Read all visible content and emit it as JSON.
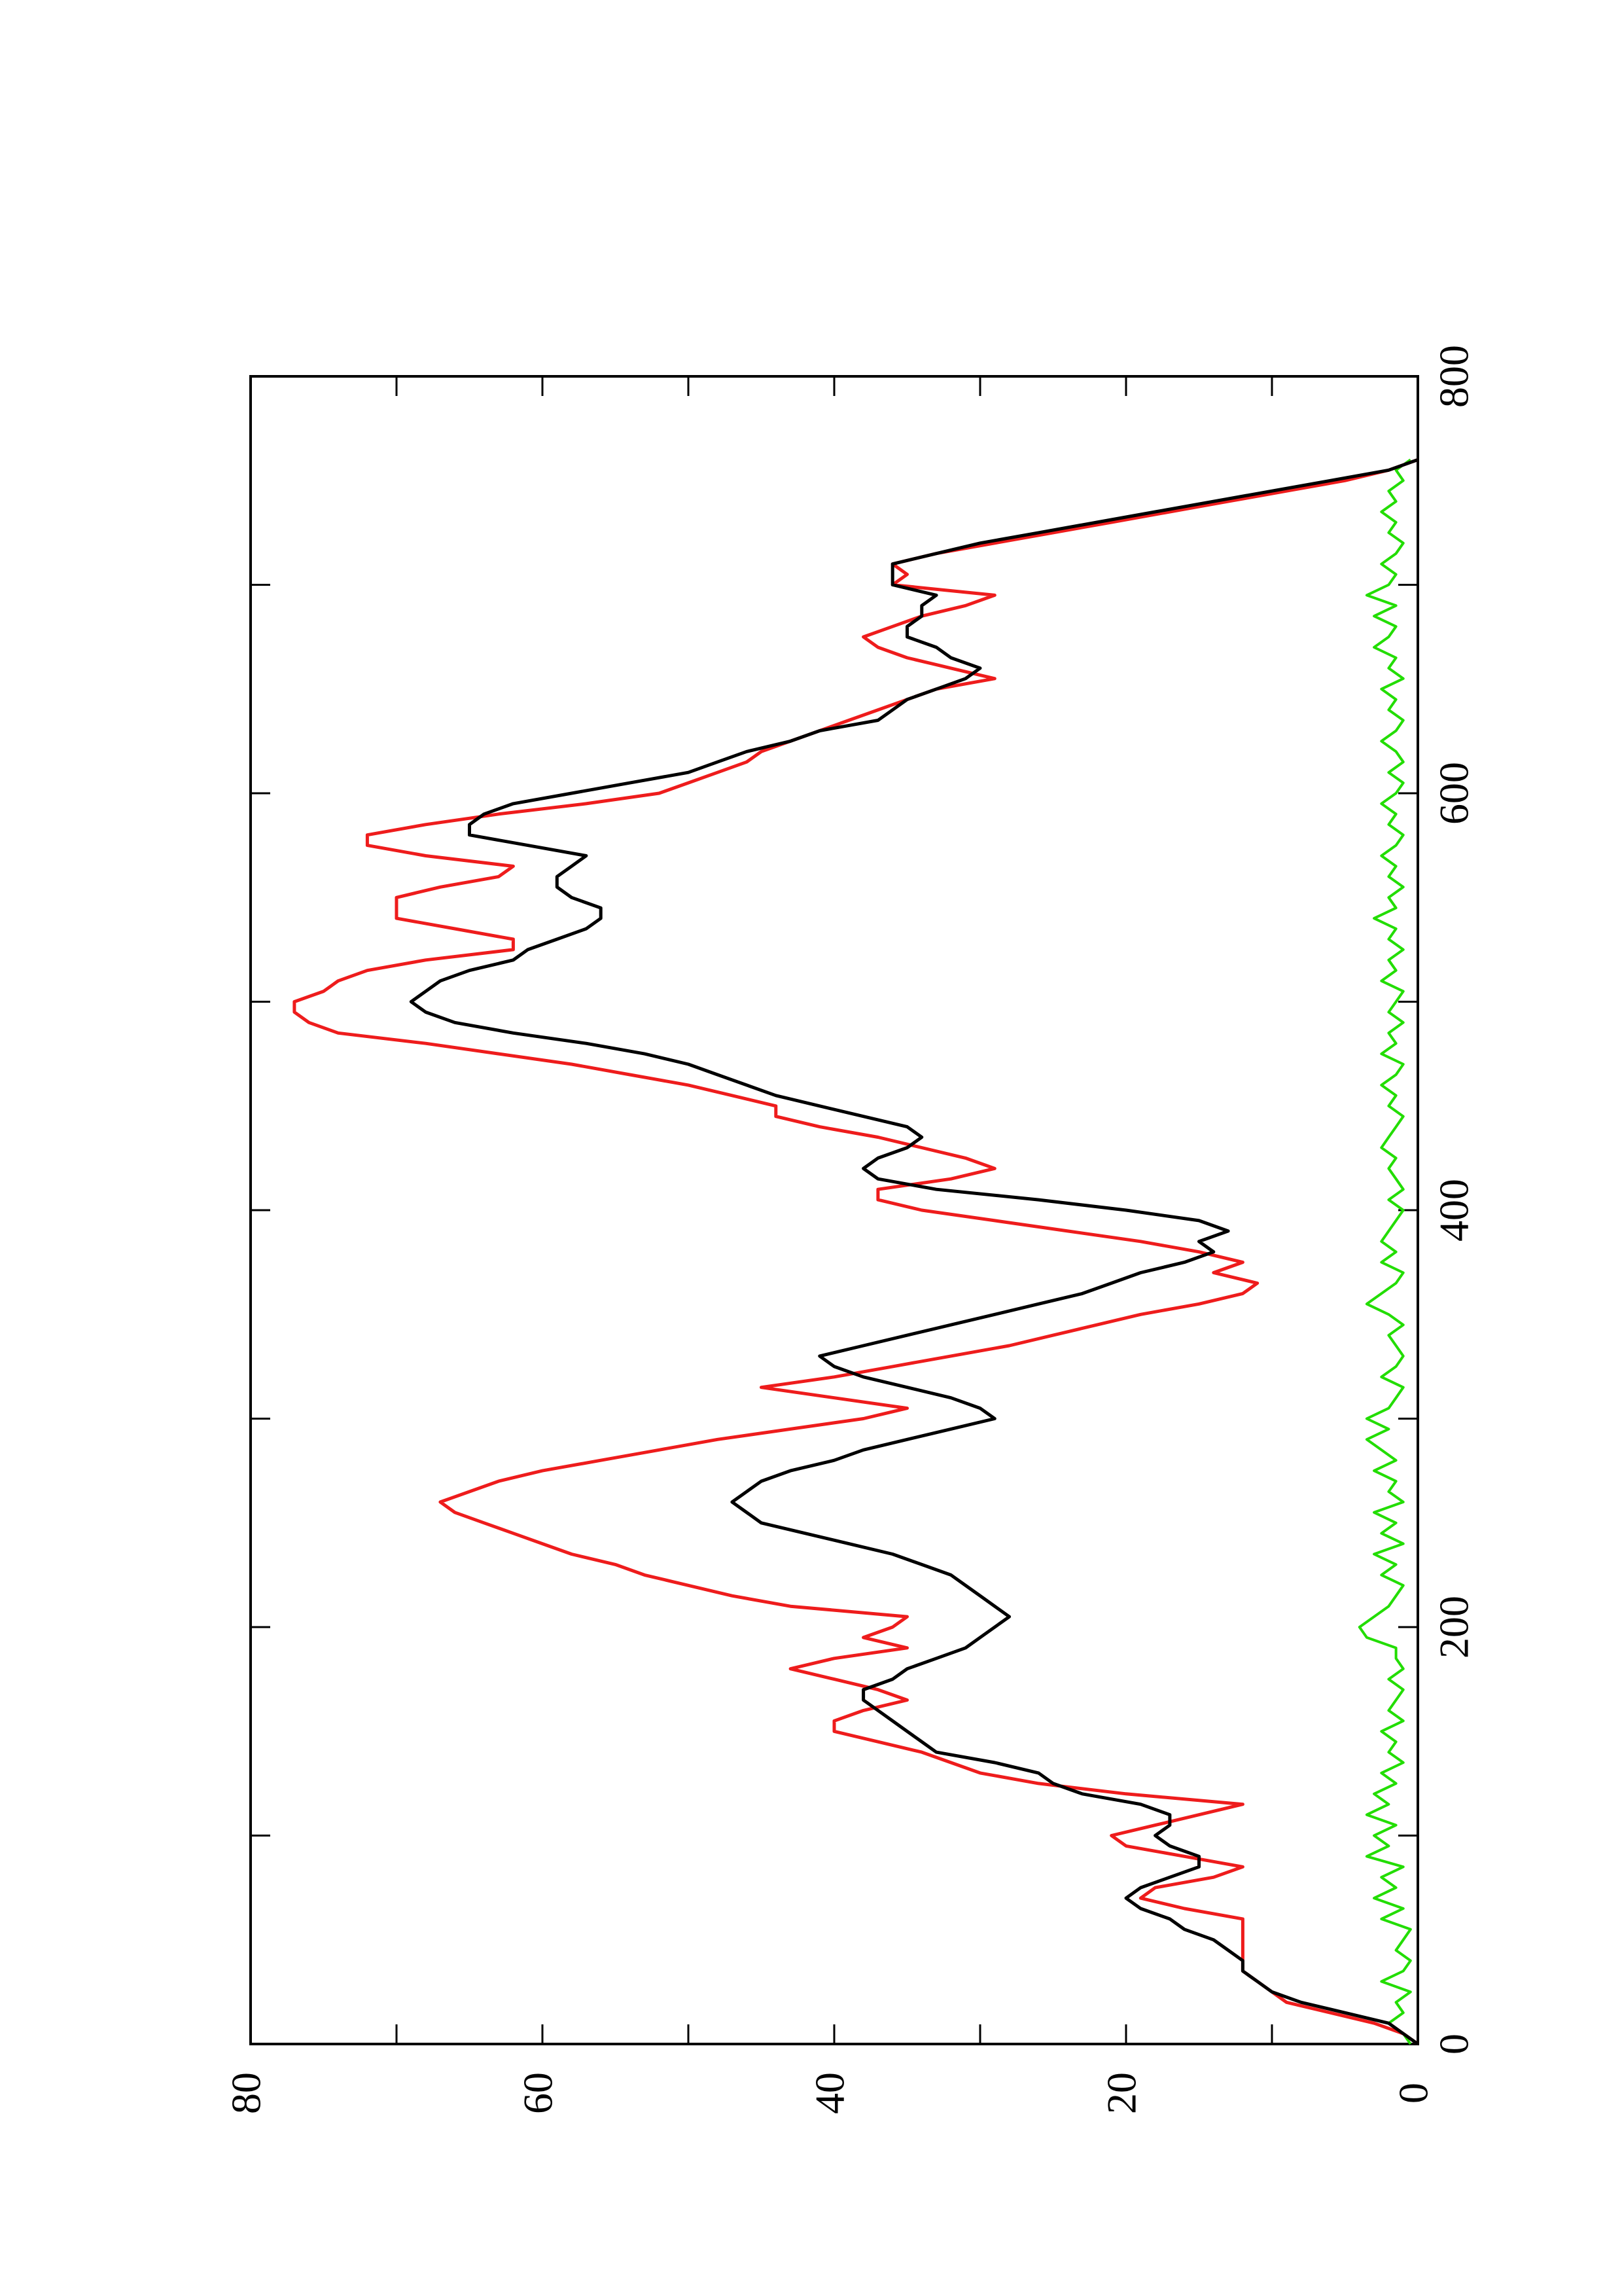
{
  "chart_data": {
    "type": "line",
    "orientation": "rotated 90 degrees counter-clockwise (x axis runs bottom-to-top on the page, y axis runs right-to-left)",
    "title": "",
    "xlabel": "",
    "ylabel": "",
    "xlim": [
      0,
      800
    ],
    "ylim": [
      0,
      80
    ],
    "x_ticks": [
      "0",
      "200",
      "400",
      "600",
      "800"
    ],
    "y_ticks": [
      "0",
      "20",
      "40",
      "60",
      "80"
    ],
    "x_minor_ticks": [
      100,
      300,
      500,
      700
    ],
    "y_minor_ticks": [
      10,
      30,
      50,
      70
    ],
    "grid": false,
    "legend": "none",
    "series": [
      {
        "color": "#000000",
        "x": [
          0,
          5,
          10,
          15,
          20,
          25,
          30,
          35,
          40,
          45,
          50,
          55,
          60,
          65,
          70,
          75,
          80,
          85,
          90,
          95,
          100,
          105,
          110,
          115,
          120,
          125,
          130,
          135,
          140,
          145,
          150,
          155,
          160,
          165,
          170,
          175,
          180,
          185,
          190,
          195,
          200,
          205,
          210,
          215,
          220,
          225,
          230,
          235,
          240,
          245,
          250,
          255,
          260,
          265,
          270,
          275,
          280,
          285,
          290,
          295,
          300,
          305,
          310,
          315,
          320,
          325,
          330,
          335,
          340,
          345,
          350,
          355,
          360,
          365,
          370,
          375,
          380,
          385,
          390,
          395,
          400,
          405,
          410,
          415,
          420,
          425,
          430,
          435,
          440,
          445,
          450,
          455,
          460,
          465,
          470,
          475,
          480,
          485,
          490,
          495,
          500,
          505,
          510,
          515,
          520,
          525,
          530,
          535,
          540,
          545,
          550,
          555,
          560,
          565,
          570,
          575,
          580,
          585,
          590,
          595,
          600,
          605,
          610,
          615,
          620,
          625,
          630,
          635,
          640,
          645,
          650,
          655,
          660,
          665,
          670,
          675,
          680,
          685,
          690,
          695,
          700,
          705,
          710,
          715,
          720,
          725,
          730,
          735,
          740,
          745,
          750,
          755,
          760
        ],
        "y": [
          0,
          1,
          2,
          5,
          8,
          10,
          11,
          12,
          12,
          13,
          14,
          16,
          17,
          19,
          20,
          19,
          17,
          15,
          15,
          17,
          18,
          17,
          17,
          19,
          23,
          25,
          26,
          29,
          33,
          34,
          35,
          36,
          37,
          38,
          38,
          36,
          35,
          33,
          31,
          30,
          29,
          28,
          29,
          30,
          31,
          32,
          34,
          36,
          39,
          42,
          45,
          46,
          47,
          46,
          45,
          43,
          40,
          38,
          35,
          32,
          29,
          30,
          32,
          35,
          38,
          40,
          41,
          38,
          35,
          32,
          29,
          26,
          23,
          21,
          19,
          16,
          14,
          15,
          13,
          15,
          20,
          26,
          33,
          37,
          38,
          37,
          35,
          34,
          35,
          38,
          41,
          44,
          46,
          48,
          50,
          53,
          57,
          62,
          66,
          68,
          69,
          68,
          67,
          65,
          62,
          61,
          59,
          57,
          56,
          56,
          58,
          59,
          59,
          58,
          57,
          61,
          65,
          65,
          64,
          62,
          58,
          54,
          50,
          48,
          46,
          43,
          41,
          37,
          36,
          35,
          33,
          31,
          30,
          32,
          33,
          35,
          35,
          34,
          34,
          33,
          36,
          36,
          36,
          33,
          30,
          26,
          22,
          18,
          14,
          10,
          6,
          2,
          0
        ]
      },
      {
        "color": "#ee1c1c",
        "x": [
          0,
          5,
          10,
          15,
          20,
          25,
          30,
          35,
          40,
          45,
          50,
          55,
          60,
          65,
          70,
          75,
          80,
          85,
          90,
          95,
          100,
          105,
          110,
          115,
          120,
          125,
          130,
          135,
          140,
          145,
          150,
          155,
          160,
          165,
          170,
          175,
          180,
          185,
          190,
          195,
          200,
          205,
          210,
          215,
          220,
          225,
          230,
          235,
          240,
          245,
          250,
          255,
          260,
          265,
          270,
          275,
          280,
          285,
          290,
          295,
          300,
          305,
          310,
          315,
          320,
          325,
          330,
          335,
          340,
          345,
          350,
          355,
          360,
          365,
          370,
          375,
          380,
          385,
          390,
          395,
          400,
          405,
          410,
          415,
          420,
          425,
          430,
          435,
          440,
          445,
          450,
          455,
          460,
          465,
          470,
          475,
          480,
          485,
          490,
          495,
          500,
          505,
          510,
          515,
          520,
          525,
          530,
          535,
          540,
          545,
          550,
          555,
          560,
          565,
          570,
          575,
          580,
          585,
          590,
          595,
          600,
          605,
          610,
          615,
          620,
          625,
          630,
          635,
          640,
          645,
          650,
          655,
          660,
          665,
          670,
          675,
          680,
          685,
          690,
          695,
          700,
          705,
          710,
          715,
          720,
          725,
          730,
          735,
          740,
          745,
          750,
          755,
          760
        ],
        "y": [
          0,
          1,
          3,
          6,
          9,
          10,
          11,
          12,
          12,
          12,
          12,
          12,
          12,
          16,
          19,
          18,
          14,
          12,
          16,
          20,
          21,
          18,
          15,
          12,
          20,
          26,
          30,
          32,
          34,
          37,
          40,
          40,
          38,
          35,
          37,
          40,
          43,
          40,
          35,
          38,
          36,
          35,
          43,
          47,
          50,
          53,
          55,
          58,
          60,
          62,
          64,
          66,
          67,
          65,
          63,
          60,
          56,
          52,
          48,
          43,
          38,
          35,
          40,
          45,
          40,
          36,
          32,
          28,
          25,
          22,
          19,
          15,
          12,
          11,
          14,
          12,
          15,
          19,
          24,
          29,
          34,
          37,
          37,
          32,
          29,
          31,
          34,
          37,
          41,
          44,
          44,
          47,
          50,
          54,
          58,
          63,
          68,
          74,
          76,
          77,
          77,
          75,
          74,
          72,
          68,
          62,
          62,
          66,
          70,
          70,
          70,
          67,
          63,
          62,
          68,
          72,
          72,
          68,
          63,
          57,
          52,
          50,
          48,
          46,
          45,
          43,
          41,
          39,
          37,
          35,
          33,
          29,
          32,
          35,
          37,
          38,
          36,
          34,
          31,
          29,
          36,
          35,
          36,
          33,
          29,
          25,
          21,
          17,
          13,
          9,
          5,
          2,
          0
        ]
      },
      {
        "color": "#22dd00",
        "x": [
          0,
          5,
          10,
          15,
          20,
          25,
          30,
          35,
          40,
          45,
          50,
          55,
          60,
          65,
          70,
          75,
          80,
          85,
          90,
          95,
          100,
          105,
          110,
          115,
          120,
          125,
          130,
          135,
          140,
          145,
          150,
          155,
          160,
          165,
          170,
          175,
          180,
          185,
          190,
          195,
          200,
          205,
          210,
          215,
          220,
          225,
          230,
          235,
          240,
          245,
          250,
          255,
          260,
          265,
          270,
          275,
          280,
          285,
          290,
          295,
          300,
          305,
          310,
          315,
          320,
          325,
          330,
          335,
          340,
          345,
          350,
          355,
          360,
          365,
          370,
          375,
          380,
          385,
          390,
          395,
          400,
          405,
          410,
          415,
          420,
          425,
          430,
          435,
          440,
          445,
          450,
          455,
          460,
          465,
          470,
          475,
          480,
          485,
          490,
          495,
          500,
          505,
          510,
          515,
          520,
          525,
          530,
          535,
          540,
          545,
          550,
          555,
          560,
          565,
          570,
          575,
          580,
          585,
          590,
          595,
          600,
          605,
          610,
          615,
          620,
          625,
          630,
          635,
          640,
          645,
          650,
          655,
          660,
          665,
          670,
          675,
          680,
          685,
          690,
          695,
          700,
          705,
          710,
          715,
          720,
          725,
          730,
          735,
          740,
          745,
          750,
          755,
          760
        ],
        "y": [
          0.5,
          1.0,
          2.0,
          1.0,
          1.5,
          0.5,
          2.5,
          1.0,
          0.5,
          1.5,
          1.0,
          0.5,
          2.5,
          1.0,
          3.0,
          1.5,
          2.5,
          1.0,
          3.5,
          2.0,
          3.0,
          1.5,
          3.5,
          2.0,
          3.0,
          1.5,
          2.5,
          1.0,
          2.0,
          1.5,
          2.5,
          1.0,
          2.0,
          1.5,
          1.0,
          2.0,
          1.0,
          1.5,
          1.5,
          3.5,
          4.0,
          3.0,
          2.0,
          1.5,
          1.0,
          2.5,
          1.5,
          3.0,
          1.0,
          2.5,
          1.5,
          3.0,
          1.0,
          2.0,
          1.5,
          3.0,
          1.5,
          2.5,
          3.5,
          2.0,
          3.5,
          2.0,
          1.5,
          1.0,
          2.5,
          1.5,
          1.0,
          1.5,
          2.0,
          1.0,
          2.0,
          3.5,
          2.5,
          1.5,
          1.0,
          2.5,
          1.5,
          2.5,
          2.0,
          1.5,
          1.0,
          2.0,
          1.0,
          1.5,
          2.0,
          1.5,
          2.5,
          2.0,
          1.5,
          1.0,
          2.0,
          1.5,
          2.5,
          1.5,
          1.0,
          2.5,
          1.5,
          2.0,
          1.0,
          2.0,
          1.5,
          1.0,
          2.5,
          1.5,
          2.0,
          1.0,
          2.0,
          1.5,
          3.0,
          1.5,
          2.0,
          1.0,
          2.0,
          1.5,
          2.5,
          1.5,
          1.0,
          2.0,
          1.5,
          2.5,
          1.5,
          1.0,
          2.0,
          1.0,
          1.5,
          2.5,
          1.5,
          1.0,
          2.0,
          1.5,
          2.5,
          1.0,
          2.0,
          1.5,
          3.0,
          2.0,
          1.5,
          3.0,
          1.5,
          3.5,
          2.0,
          1.5,
          2.5,
          1.5,
          1.0,
          2.0,
          1.5,
          2.5,
          1.5,
          2.0,
          1.0,
          1.5,
          0.5
        ]
      }
    ]
  }
}
